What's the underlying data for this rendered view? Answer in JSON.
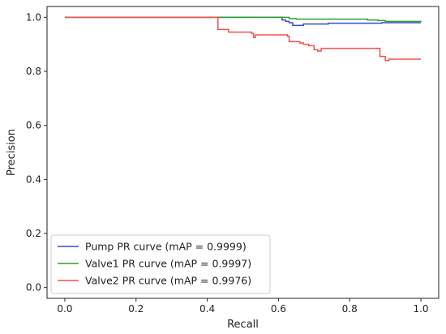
{
  "chart_data": {
    "type": "line",
    "title": "",
    "xlabel": "Recall",
    "ylabel": "Precision",
    "xlim": [
      -0.05,
      1.05
    ],
    "ylim": [
      -0.04,
      1.04
    ],
    "xticks": [
      0.0,
      0.2,
      0.4,
      0.6,
      0.8,
      1.0
    ],
    "xtick_labels": [
      "0.0",
      "0.2",
      "0.4",
      "0.6",
      "0.8",
      "1.0"
    ],
    "yticks": [
      0.0,
      0.2,
      0.4,
      0.6,
      0.8,
      1.0
    ],
    "ytick_labels": [
      "0.0",
      "0.2",
      "0.4",
      "0.6",
      "0.8",
      "1.0"
    ],
    "grid": false,
    "legend_position": "lower-left",
    "series": [
      {
        "name": "Pump PR curve (mAP = 0.9999)",
        "color": "#3b48cc",
        "step": true,
        "points": [
          [
            0.0,
            1.0
          ],
          [
            0.6,
            1.0
          ],
          [
            0.61,
            0.99
          ],
          [
            0.62,
            0.985
          ],
          [
            0.63,
            0.98
          ],
          [
            0.64,
            0.97
          ],
          [
            0.67,
            0.975
          ],
          [
            0.74,
            0.978
          ],
          [
            0.84,
            0.978
          ],
          [
            0.89,
            0.98
          ],
          [
            1.0,
            0.98
          ]
        ]
      },
      {
        "name": "Valve1 PR curve (mAP = 0.9997)",
        "color": "#2ca02c",
        "step": true,
        "points": [
          [
            0.0,
            1.0
          ],
          [
            0.61,
            1.0
          ],
          [
            0.63,
            0.995
          ],
          [
            0.65,
            0.993
          ],
          [
            0.85,
            0.99
          ],
          [
            0.88,
            0.988
          ],
          [
            0.9,
            0.985
          ],
          [
            1.0,
            0.983
          ]
        ]
      },
      {
        "name": "Valve2 PR curve (mAP = 0.9976)",
        "color": "#f05050",
        "step": true,
        "points": [
          [
            0.0,
            1.0
          ],
          [
            0.425,
            1.0
          ],
          [
            0.43,
            0.955
          ],
          [
            0.45,
            0.955
          ],
          [
            0.46,
            0.945
          ],
          [
            0.525,
            0.94
          ],
          [
            0.53,
            0.925
          ],
          [
            0.535,
            0.935
          ],
          [
            0.625,
            0.93
          ],
          [
            0.63,
            0.91
          ],
          [
            0.66,
            0.905
          ],
          [
            0.67,
            0.9
          ],
          [
            0.685,
            0.895
          ],
          [
            0.7,
            0.88
          ],
          [
            0.71,
            0.875
          ],
          [
            0.72,
            0.885
          ],
          [
            0.79,
            0.885
          ],
          [
            0.88,
            0.885
          ],
          [
            0.885,
            0.855
          ],
          [
            0.89,
            0.855
          ],
          [
            0.9,
            0.84
          ],
          [
            0.91,
            0.845
          ],
          [
            1.0,
            0.845
          ]
        ]
      }
    ]
  }
}
